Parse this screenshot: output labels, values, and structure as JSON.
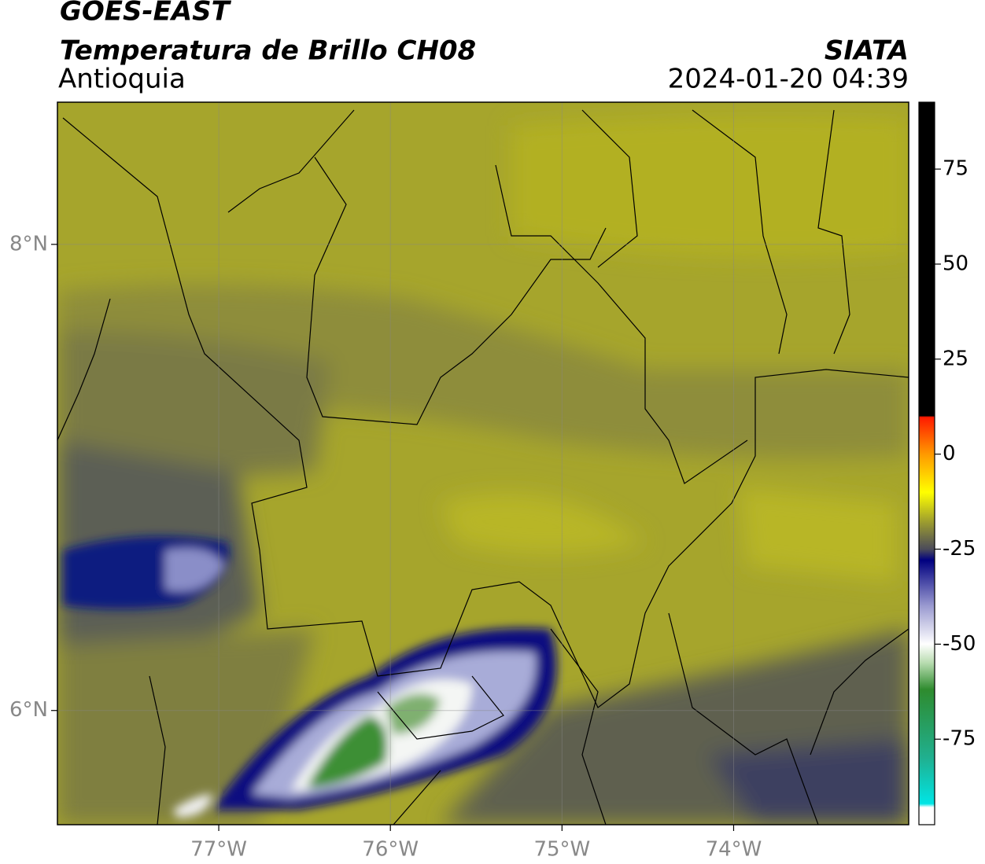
{
  "header": {
    "satellite": "GOES-EAST",
    "product": "Temperatura de Brillo CH08",
    "region": "Antioquia",
    "agency": "SIATA",
    "timestamp": "2024-01-20 04:39"
  },
  "map": {
    "xlim": [
      -77.94,
      -72.98
    ],
    "ylim": [
      5.51,
      8.61
    ],
    "xticks": [
      {
        "value": -77,
        "label": "77°W"
      },
      {
        "value": -76,
        "label": "76°W"
      },
      {
        "value": -75,
        "label": "75°W"
      },
      {
        "value": -74,
        "label": "74°W"
      }
    ],
    "yticks": [
      {
        "value": 8,
        "label": "8°N"
      },
      {
        "value": 6,
        "label": "6°N"
      }
    ],
    "grid": true
  },
  "colorbar": {
    "lim": [
      -97.5,
      92.6
    ],
    "ticks": [
      75,
      50,
      25,
      0,
      -25,
      -50,
      -75
    ]
  }
}
